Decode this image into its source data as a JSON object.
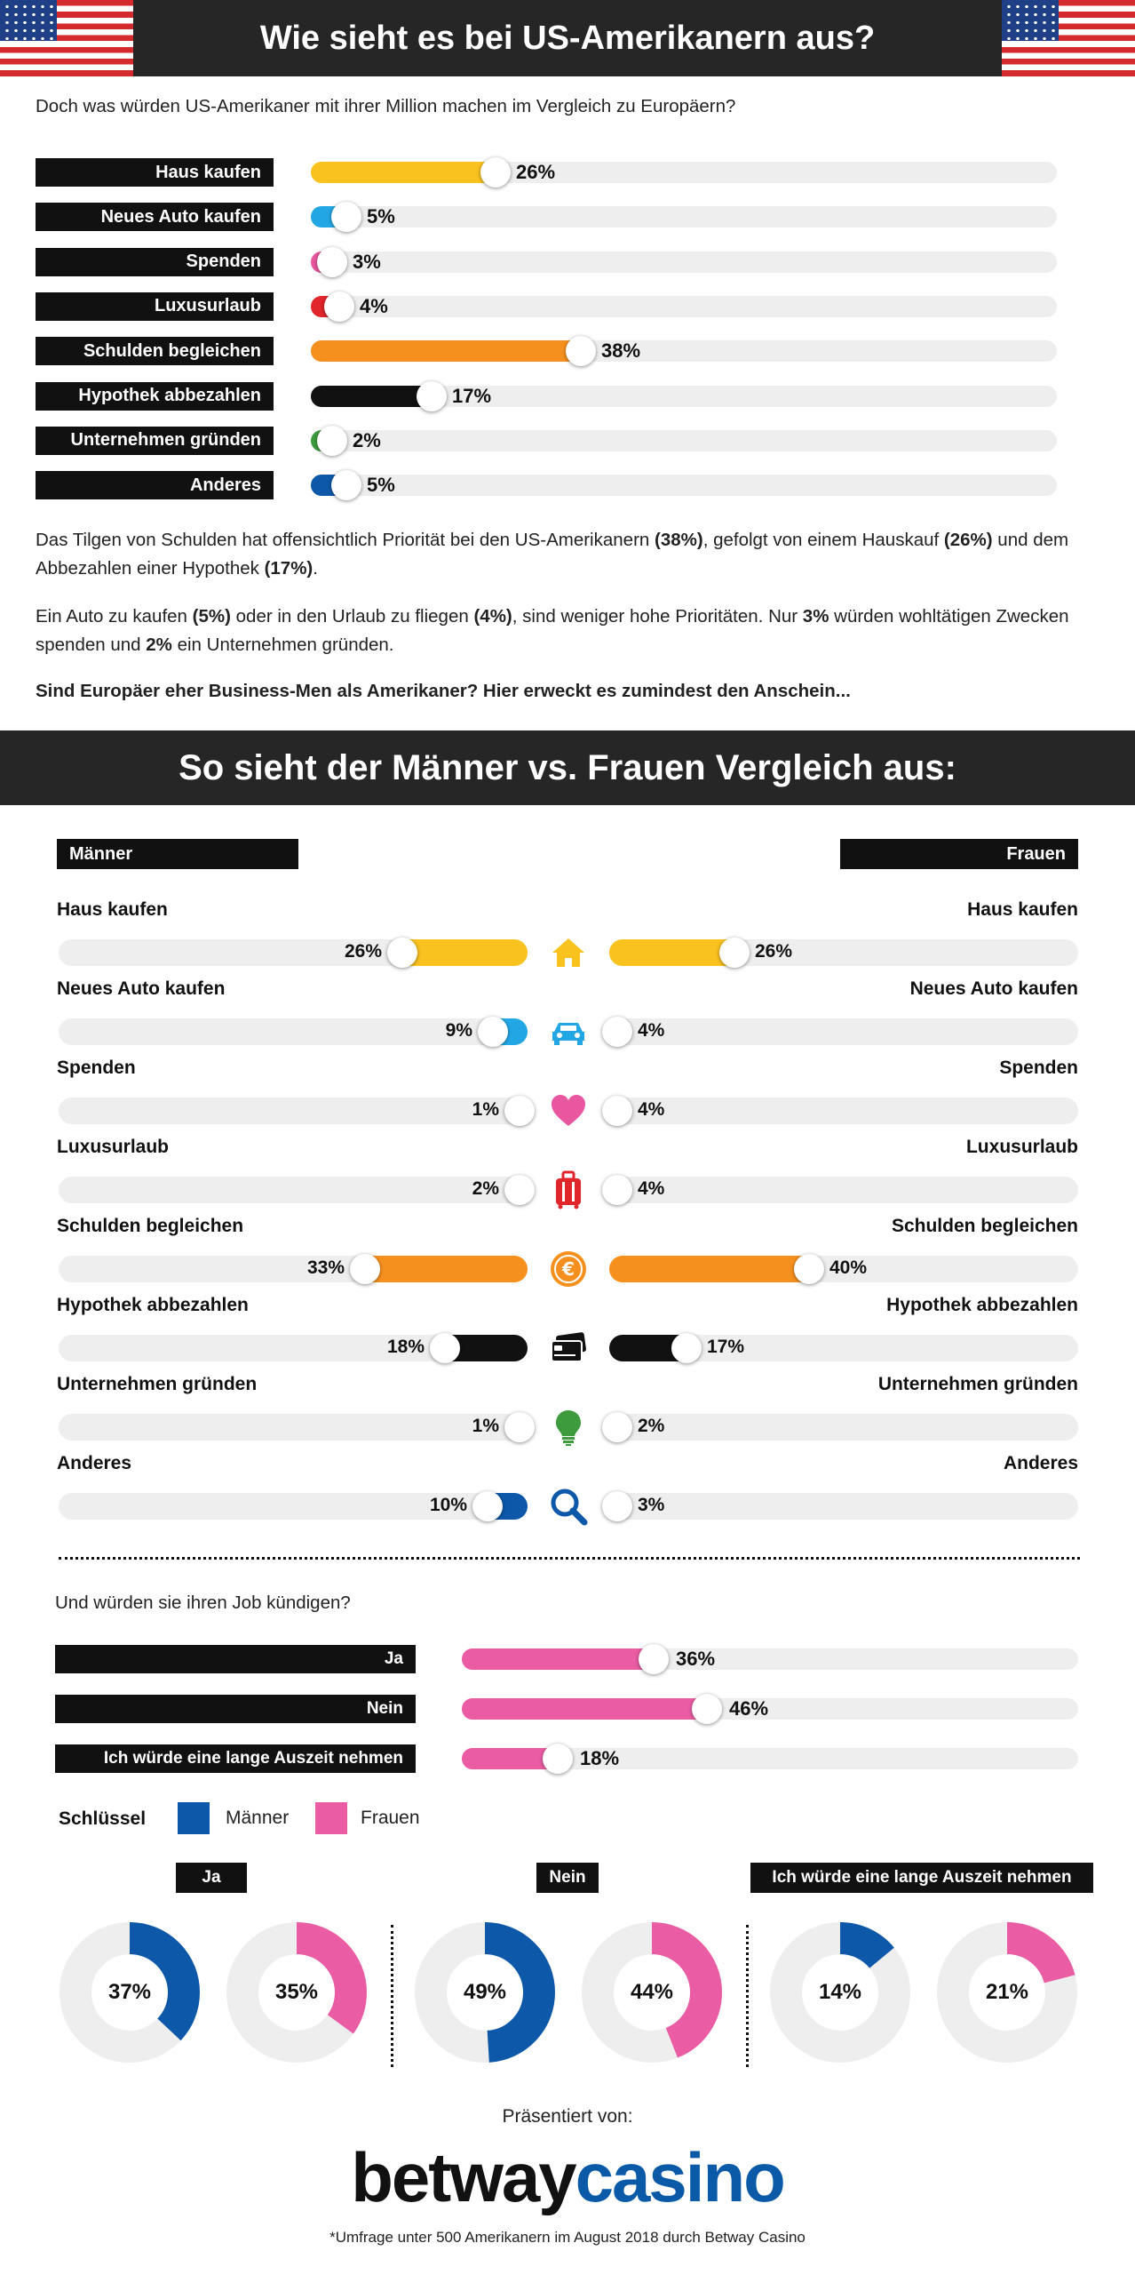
{
  "header": {
    "title": "Wie sieht es bei US-Amerikanern aus?",
    "intro": "Doch was würden US-Amerikaner mit ihrer Million machen im Vergleich zu Europäern?"
  },
  "colors": {
    "haus": "#f9c21f",
    "auto": "#23a7e4",
    "spenden": "#e8579f",
    "urlaub": "#e0262b",
    "schulden": "#f5901e",
    "hypothek": "#111111",
    "unternehmen": "#3d9b3d",
    "anderes": "#0d58a8",
    "maenner": "#0d58a8",
    "frauen": "#ea5ca4"
  },
  "us_chart": {
    "categories": [
      "Haus kaufen",
      "Neues Auto kaufen",
      "Spenden",
      "Luxusurlaub",
      "Schulden begleichen",
      "Hypothek abbezahlen",
      "Unternehmen gründen",
      "Anderes"
    ],
    "values": [
      26,
      5,
      3,
      4,
      38,
      17,
      2,
      5
    ],
    "labels": [
      "26%",
      "5%",
      "3%",
      "4%",
      "38%",
      "17%",
      "2%",
      "5%"
    ]
  },
  "paragraphs": {
    "p1_a": "Das Tilgen von Schulden hat offensichtlich Priorität bei den US-Amerikanern ",
    "p1_b": "(38%)",
    "p1_c": ", gefolgt von einem Hauskauf ",
    "p1_d": "(26%)",
    "p1_e": " und dem Abbezahlen einer Hypothek ",
    "p1_f": "(17%)",
    "p1_g": ".",
    "p2_a": "Ein Auto zu kaufen ",
    "p2_b": "(5%)",
    "p2_c": " oder in den Urlaub zu fliegen ",
    "p2_d": "(4%)",
    "p2_e": ", sind weniger hohe Prioritäten. Nur ",
    "p2_f": "3%",
    "p2_g": " würden wohltätigen Zwecken spenden und ",
    "p2_h": "2%",
    "p2_i": " ein Unternehmen gründen.",
    "p3": "Sind Europäer eher Business-Men als Amerikaner? Hier erweckt es zumindest den Anschein..."
  },
  "gender": {
    "title": "So sieht der Männer vs. Frauen Vergleich aus:",
    "men_label": "Männer",
    "women_label": "Frauen",
    "categories": [
      "Haus kaufen",
      "Neues Auto kaufen",
      "Spenden",
      "Luxusurlaub",
      "Schulden begleichen",
      "Hypothek abbezahlen",
      "Unternehmen gründen",
      "Anderes"
    ],
    "icons": [
      "house-icon",
      "car-icon",
      "heart-icon",
      "suitcase-icon",
      "euro-coin-icon",
      "credit-cards-icon",
      "lightbulb-icon",
      "magnifier-icon"
    ],
    "men_values": [
      26,
      9,
      1,
      2,
      33,
      18,
      1,
      10
    ],
    "men_labels": [
      "26%",
      "9%",
      "1%",
      "2%",
      "33%",
      "18%",
      "1%",
      "10%"
    ],
    "women_values": [
      26,
      4,
      4,
      4,
      40,
      17,
      2,
      3
    ],
    "women_labels": [
      "26%",
      "4%",
      "4%",
      "4%",
      "40%",
      "17%",
      "2%",
      "3%"
    ]
  },
  "job": {
    "question": "Und würden sie ihren Job kündigen?",
    "categories": [
      "Ja",
      "Nein",
      "Ich würde eine lange Auszeit nehmen"
    ],
    "values": [
      36,
      46,
      18
    ],
    "labels": [
      "36%",
      "46%",
      "18%"
    ]
  },
  "key": {
    "title": "Schlüssel",
    "men": "Männer",
    "women": "Frauen"
  },
  "donuts": {
    "groups": [
      "Ja",
      "Nein",
      "Ich würde eine lange Auszeit nehmen"
    ],
    "men_values": [
      37,
      49,
      14
    ],
    "men_labels": [
      "37%",
      "49%",
      "14%"
    ],
    "women_values": [
      35,
      44,
      21
    ],
    "women_labels": [
      "35%",
      "44%",
      "21%"
    ]
  },
  "footer": {
    "presented": "Präsentiert von:",
    "brand_a": "betway",
    "brand_b": "casino",
    "note": "*Umfrage unter 500 Amerikanern im August 2018 durch Betway Casino"
  },
  "chart_data": [
    {
      "type": "bar",
      "title": "Wie sieht es bei US-Amerikanern aus?",
      "categories": [
        "Haus kaufen",
        "Neues Auto kaufen",
        "Spenden",
        "Luxusurlaub",
        "Schulden begleichen",
        "Hypothek abbezahlen",
        "Unternehmen gründen",
        "Anderes"
      ],
      "values": [
        26,
        5,
        3,
        4,
        38,
        17,
        2,
        5
      ],
      "ylim": [
        0,
        100
      ]
    },
    {
      "type": "bar",
      "title": "So sieht der Männer vs. Frauen Vergleich aus:",
      "categories": [
        "Haus kaufen",
        "Neues Auto kaufen",
        "Spenden",
        "Luxusurlaub",
        "Schulden begleichen",
        "Hypothek abbezahlen",
        "Unternehmen gründen",
        "Anderes"
      ],
      "series": [
        {
          "name": "Männer",
          "values": [
            26,
            9,
            1,
            2,
            33,
            18,
            1,
            10
          ]
        },
        {
          "name": "Frauen",
          "values": [
            26,
            4,
            4,
            4,
            40,
            17,
            2,
            3
          ]
        }
      ],
      "ylim": [
        0,
        100
      ]
    },
    {
      "type": "bar",
      "title": "Und würden sie ihren Job kündigen?",
      "categories": [
        "Ja",
        "Nein",
        "Ich würde eine lange Auszeit nehmen"
      ],
      "values": [
        36,
        46,
        18
      ],
      "ylim": [
        0,
        100
      ]
    },
    {
      "type": "pie",
      "categories": [
        "Ja",
        "Nein",
        "Ich würde eine lange Auszeit nehmen"
      ],
      "series": [
        {
          "name": "Männer",
          "values": [
            37,
            49,
            14
          ]
        },
        {
          "name": "Frauen",
          "values": [
            35,
            44,
            21
          ]
        }
      ]
    }
  ]
}
